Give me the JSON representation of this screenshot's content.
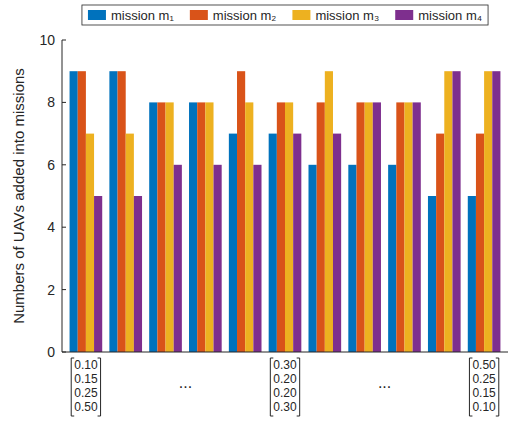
{
  "chart_data": {
    "type": "bar",
    "y_label": "Numbers of UAVs added into missions",
    "categories": [
      "0.10 0.15 0.25 0.50",
      null,
      null,
      null,
      null,
      "0.30 0.20 0.20 0.30",
      null,
      null,
      null,
      null,
      "0.50 0.25 0.15 0.10"
    ],
    "series": [
      {
        "name": "mission m₁",
        "color": "#0072bd",
        "values": [
          9,
          9,
          8,
          8,
          7,
          7,
          6,
          6,
          6,
          5,
          5
        ]
      },
      {
        "name": "mission m₂",
        "color": "#d95319",
        "values": [
          9,
          9,
          8,
          8,
          9,
          8,
          8,
          8,
          8,
          7,
          7
        ]
      },
      {
        "name": "mission m₃",
        "color": "#edb120",
        "values": [
          7,
          7,
          8,
          8,
          8,
          8,
          9,
          8,
          8,
          9,
          9
        ]
      },
      {
        "name": "mission m₄",
        "color": "#7e2f8e",
        "values": [
          5,
          5,
          6,
          6,
          6,
          7,
          7,
          8,
          8,
          9,
          9
        ]
      }
    ],
    "annotations": [
      {
        "text": "...",
        "x": 3.5
      },
      {
        "text": "...",
        "x": 8.5
      }
    ],
    "ylim": [
      0,
      10
    ],
    "yticks": [
      0,
      2,
      4,
      6,
      8,
      10
    ],
    "legend": "top",
    "grid": false
  }
}
